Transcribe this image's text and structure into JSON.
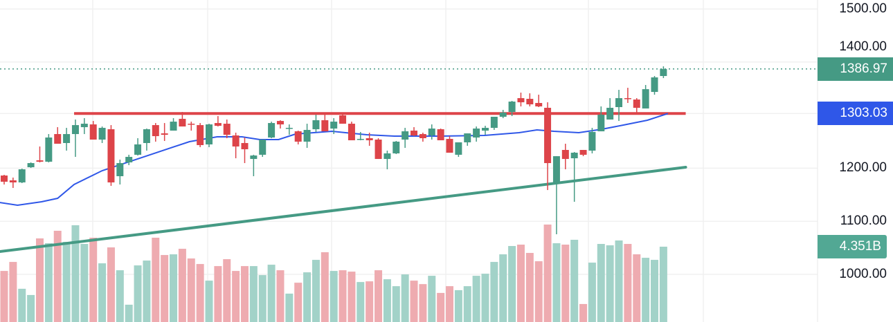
{
  "chart_data": {
    "type": "candlestick",
    "title": "",
    "price_axis": {
      "ticks": [
        "1500.00",
        "1400.00",
        "1200.00",
        "1100.00",
        "1000.00"
      ],
      "tick_values": [
        1500,
        1400,
        1200,
        1100,
        1000
      ],
      "range": [
        940,
        1515
      ]
    },
    "grid": true,
    "colors": {
      "up": "#459a84",
      "down": "#dd4449",
      "up_volume": "#a2d2c8",
      "down_volume": "#eeabb0",
      "ma": "#2f57e8",
      "resistance": "#dd4449",
      "trendline": "#459a84"
    },
    "candles_ohlc": [
      [
        1186.2,
        1187.5,
        1169.3,
        1174.5
      ],
      [
        1177.1,
        1182.3,
        1162.8,
        1173.2
      ],
      [
        1173.2,
        1199.2,
        1171.9,
        1197.9
      ],
      [
        1201.8,
        1210.9,
        1200.5,
        1209.6
      ],
      [
        1214.8,
        1240.9,
        1210.9,
        1212.2
      ],
      [
        1212.2,
        1264.3,
        1210.9,
        1257.8
      ],
      [
        1264.3,
        1277.3,
        1246.1,
        1246.1
      ],
      [
        1247.4,
        1276.0,
        1233.1,
        1264.3
      ],
      [
        1264.3,
        1291.7,
        1221.3,
        1281.2
      ],
      [
        1277.3,
        1294.3,
        1264.3,
        1283.8
      ],
      [
        1282.5,
        1289.0,
        1253.9,
        1253.9
      ],
      [
        1253.9,
        1278.6,
        1247.4,
        1276.0
      ],
      [
        1273.4,
        1281.2,
        1166.7,
        1173.2
      ],
      [
        1184.9,
        1216.1,
        1169.3,
        1209.6
      ],
      [
        1210.9,
        1225.3,
        1205.7,
        1221.3
      ],
      [
        1225.3,
        1256.5,
        1223.9,
        1244.8
      ],
      [
        1247.4,
        1274.7,
        1233.1,
        1273.4
      ],
      [
        1281.2,
        1285.1,
        1250.0,
        1260.4
      ],
      [
        1265.6,
        1285.1,
        1251.3,
        1263.0
      ],
      [
        1270.8,
        1294.3,
        1270.8,
        1287.7
      ],
      [
        1293.0,
        1306.0,
        1278.6,
        1278.6
      ],
      [
        1283.8,
        1287.7,
        1270.8,
        1282.5
      ],
      [
        1281.2,
        1285.1,
        1239.6,
        1243.5
      ],
      [
        1244.8,
        1283.8,
        1239.6,
        1282.5
      ],
      [
        1285.1,
        1298.2,
        1278.6,
        1279.9
      ],
      [
        1283.8,
        1291.7,
        1256.5,
        1263.0
      ],
      [
        1261.7,
        1266.9,
        1218.7,
        1240.9
      ],
      [
        1247.4,
        1257.8,
        1209.6,
        1235.7
      ],
      [
        1217.4,
        1225.3,
        1184.9,
        1223.9
      ],
      [
        1225.3,
        1253.9,
        1221.3,
        1253.9
      ],
      [
        1257.8,
        1287.7,
        1256.5,
        1285.1
      ],
      [
        1289.0,
        1290.4,
        1274.7,
        1282.5
      ],
      [
        1274.7,
        1282.5,
        1263.0,
        1276.0
      ],
      [
        1269.5,
        1270.8,
        1244.8,
        1250.0
      ],
      [
        1250.0,
        1283.8,
        1238.3,
        1272.1
      ],
      [
        1273.4,
        1300.8,
        1268.2,
        1290.4
      ],
      [
        1290.4,
        1300.8,
        1269.5,
        1269.5
      ],
      [
        1274.7,
        1294.3,
        1264.3,
        1287.7
      ],
      [
        1299.5,
        1304.7,
        1283.8,
        1283.8
      ],
      [
        1283.8,
        1287.7,
        1252.6,
        1252.6
      ],
      [
        1253.9,
        1268.2,
        1252.6,
        1255.2
      ],
      [
        1256.5,
        1266.9,
        1242.2,
        1252.6
      ],
      [
        1253.9,
        1256.5,
        1217.4,
        1217.4
      ],
      [
        1217.4,
        1233.1,
        1197.9,
        1227.9
      ],
      [
        1227.9,
        1251.3,
        1226.6,
        1250.0
      ],
      [
        1253.9,
        1276.0,
        1238.3,
        1269.5
      ],
      [
        1270.8,
        1277.3,
        1260.4,
        1261.7
      ],
      [
        1264.3,
        1266.9,
        1250.0,
        1256.5
      ],
      [
        1261.7,
        1282.5,
        1253.9,
        1274.7
      ],
      [
        1273.4,
        1274.7,
        1252.6,
        1252.6
      ],
      [
        1255.2,
        1260.4,
        1229.2,
        1229.2
      ],
      [
        1225.3,
        1248.7,
        1221.3,
        1248.7
      ],
      [
        1248.7,
        1265.6,
        1242.2,
        1265.6
      ],
      [
        1257.8,
        1278.6,
        1250.0,
        1274.7
      ],
      [
        1270.8,
        1279.9,
        1263.0,
        1276.0
      ],
      [
        1276.0,
        1296.9,
        1272.1,
        1296.9
      ],
      [
        1296.9,
        1309.9,
        1294.3,
        1304.7
      ],
      [
        1306.0,
        1326.8,
        1298.2,
        1325.5
      ],
      [
        1332.0,
        1342.4,
        1316.4,
        1324.2
      ],
      [
        1330.7,
        1341.1,
        1316.4,
        1320.3
      ],
      [
        1322.9,
        1338.5,
        1315.1,
        1316.4
      ],
      [
        1313.8,
        1324.2,
        1158.8,
        1209.6
      ],
      [
        1170.6,
        1222.6,
        1075.5,
        1222.6
      ],
      [
        1234.4,
        1246.1,
        1197.9,
        1217.4
      ],
      [
        1218.7,
        1230.5,
        1136.7,
        1229.2
      ],
      [
        1234.4,
        1234.4,
        1222.6,
        1225.3
      ],
      [
        1233.1,
        1276.0,
        1227.9,
        1268.2
      ],
      [
        1269.5,
        1316.4,
        1269.5,
        1300.8
      ],
      [
        1291.7,
        1332.0,
        1291.7,
        1313.8
      ],
      [
        1315.1,
        1347.6,
        1289.0,
        1332.0
      ],
      [
        1332.0,
        1351.5,
        1322.9,
        1330.7
      ],
      [
        1329.4,
        1332.0,
        1303.4,
        1313.8
      ],
      [
        1312.5,
        1356.8,
        1312.5,
        1348.9
      ],
      [
        1343.7,
        1373.7,
        1338.5,
        1371.1
      ],
      [
        1373.7,
        1391.9,
        1369.8,
        1386.97
      ]
    ],
    "volume_billions": [
      2.95,
      3.47,
      1.92,
      1.56,
      4.83,
      4.55,
      5.27,
      4.63,
      5.59,
      4.51,
      4.87,
      3.39,
      4.31,
      2.99,
      1.0,
      3.27,
      3.55,
      4.87,
      3.87,
      3.91,
      4.23,
      3.67,
      3.35,
      2.39,
      3.23,
      3.63,
      2.95,
      3.23,
      3.23,
      2.71,
      3.31,
      2.99,
      1.64,
      2.27,
      2.87,
      3.59,
      4.03,
      2.95,
      2.99,
      2.91,
      2.31,
      2.35,
      2.99,
      2.47,
      2.07,
      2.75,
      2.39,
      2.19,
      2.67,
      1.68,
      2.07,
      1.84,
      2.07,
      2.67,
      2.79,
      3.47,
      3.91,
      4.39,
      4.47,
      3.99,
      3.51,
      5.63,
      4.55,
      4.47,
      4.75,
      1.04,
      3.43,
      4.51,
      4.43,
      4.71,
      4.51,
      3.91,
      3.71,
      3.59,
      4.351
    ],
    "moving_average_points": [
      [
        -0.5,
        1135.4
      ],
      [
        1.5,
        1130.2
      ],
      [
        4.2,
        1136.7
      ],
      [
        6,
        1143.2
      ],
      [
        7.85,
        1169.3
      ],
      [
        11,
        1195.3
      ],
      [
        15.9,
        1222.6
      ],
      [
        20.8,
        1250.0
      ],
      [
        23.9,
        1259.1
      ],
      [
        26.7,
        1259.1
      ],
      [
        28.7,
        1253.9
      ],
      [
        30.8,
        1253.9
      ],
      [
        32.7,
        1264.3
      ],
      [
        36.8,
        1269.5
      ],
      [
        40.7,
        1263.0
      ],
      [
        43.8,
        1260.4
      ],
      [
        48.7,
        1260.4
      ],
      [
        53.9,
        1261.7
      ],
      [
        57.8,
        1266.9
      ],
      [
        59.8,
        1272.1
      ],
      [
        61.7,
        1269.5
      ],
      [
        64.5,
        1266.9
      ],
      [
        67.1,
        1273.4
      ],
      [
        69.5,
        1281.2
      ],
      [
        72.2,
        1290.4
      ],
      [
        74.5,
        1303.03
      ]
    ],
    "resistance_line": {
      "price": 1303.03,
      "from_index": 7.85,
      "to_index": 76.5
    },
    "trend_line": {
      "from": [
        -0.47,
        1043.0
      ],
      "to": [
        76.5,
        1201.8
      ]
    },
    "last_price": 1386.97
  },
  "labels": {
    "last_price": "1386.97",
    "ma_value": "1303.03",
    "volume_value": "4.351B"
  }
}
